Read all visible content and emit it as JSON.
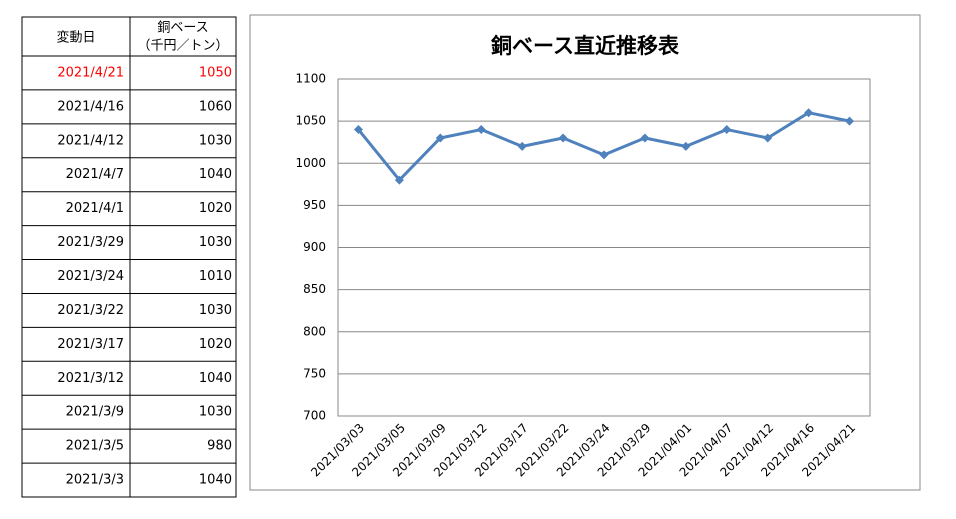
{
  "table": {
    "header": {
      "date": "変動日",
      "price_lines": [
        "銅ベース",
        "（千円／トン）"
      ]
    },
    "highlight_row": 0,
    "highlight_color": "#ff0000",
    "rows": [
      [
        "2021/4/21",
        1050
      ],
      [
        "2021/4/16",
        1060
      ],
      [
        "2021/4/12",
        1030
      ],
      [
        "2021/4/7",
        1040
      ],
      [
        "2021/4/1",
        1020
      ],
      [
        "2021/3/29",
        1030
      ],
      [
        "2021/3/24",
        1010
      ],
      [
        "2021/3/22",
        1030
      ],
      [
        "2021/3/17",
        1020
      ],
      [
        "2021/3/12",
        1040
      ],
      [
        "2021/3/9",
        1030
      ],
      [
        "2021/3/5",
        980
      ],
      [
        "2021/3/3",
        1040
      ]
    ]
  },
  "chart_data": {
    "type": "line",
    "title": "銅ベース直近推移表",
    "categories": [
      "2021/03/03",
      "2021/03/05",
      "2021/03/09",
      "2021/03/12",
      "2021/03/17",
      "2021/03/22",
      "2021/03/24",
      "2021/03/29",
      "2021/04/01",
      "2021/04/07",
      "2021/04/12",
      "2021/04/16",
      "2021/04/21"
    ],
    "values": [
      1040,
      980,
      1030,
      1040,
      1020,
      1030,
      1010,
      1030,
      1020,
      1040,
      1030,
      1060,
      1050
    ],
    "color": "#4f81bd",
    "ylim": [
      700,
      1100
    ],
    "yticks": [
      700,
      750,
      800,
      850,
      900,
      950,
      1000,
      1050,
      1100
    ],
    "grid": true
  }
}
